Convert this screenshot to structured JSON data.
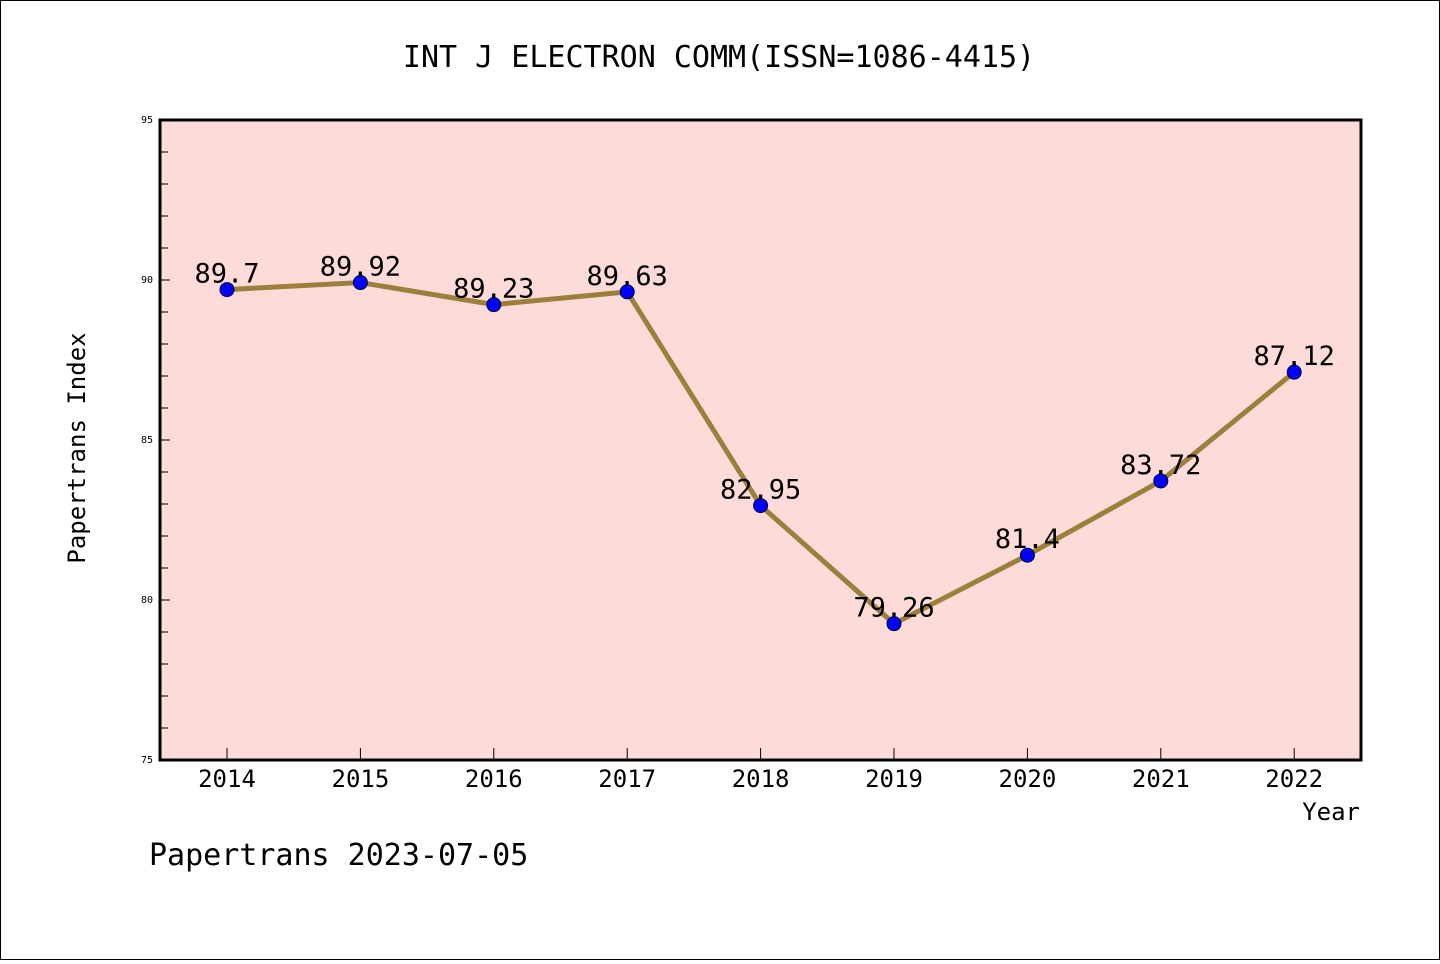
{
  "chart_data": {
    "type": "line",
    "title": "INT J ELECTRON COMM(ISSN=1086-4415)",
    "xlabel": "Year",
    "ylabel": "Papertrans Index",
    "categories": [
      "2014",
      "2015",
      "2016",
      "2017",
      "2018",
      "2019",
      "2020",
      "2021",
      "2022"
    ],
    "values": [
      89.7,
      89.92,
      89.23,
      89.63,
      82.95,
      79.26,
      81.4,
      83.72,
      87.12
    ],
    "data_labels": [
      "89.7",
      "89.92",
      "89.23",
      "89.63",
      "82.95",
      "79.26",
      "81.4",
      "83.72",
      "87.12"
    ],
    "ylim": [
      75,
      95
    ],
    "yticks": [
      "75",
      "80",
      "85",
      "90",
      "95"
    ],
    "grid": false,
    "colors": {
      "plot_background": "#fddbd8",
      "line": "#9b7f3a",
      "marker": "#0000ff"
    }
  },
  "footer": "Papertrans 2023-07-05"
}
